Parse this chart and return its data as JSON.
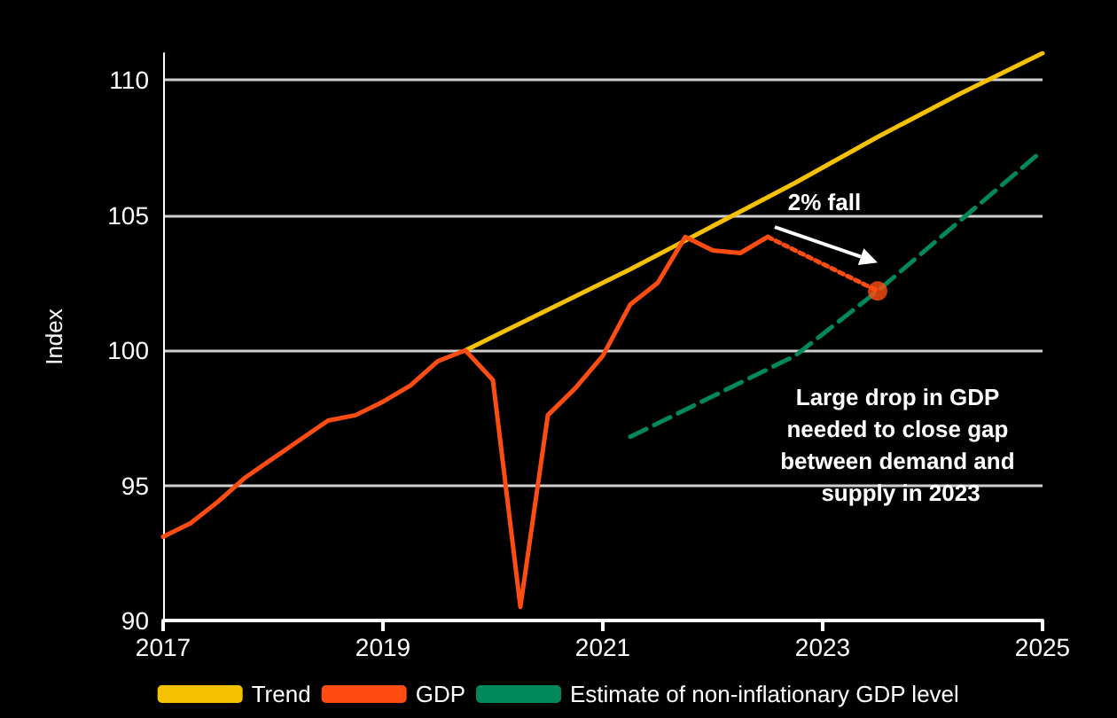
{
  "chart_data": {
    "type": "line",
    "ylabel": "Index",
    "xlim": [
      2017,
      2025
    ],
    "xticks": [
      2017,
      2019,
      2021,
      2023,
      2025
    ],
    "ylim": [
      90,
      111
    ],
    "yticks": [
      90,
      95,
      100,
      105,
      110
    ],
    "grid": "y",
    "legend": "bottom",
    "marker": "none",
    "annotations": [
      "2% fall",
      "Large drop in GDP needed to close gap between demand and supply in 2023"
    ],
    "series": [
      {
        "name": "Trend",
        "color": "#f5c000",
        "x": [
          2019.75,
          2020.5,
          2021.25,
          2022.0,
          2022.75,
          2023.5,
          2024.25,
          2025
        ],
        "values": [
          100.0,
          101.5,
          103.0,
          104.6,
          106.2,
          107.9,
          109.5,
          111.0
        ]
      },
      {
        "name": "GDP",
        "color": "#ff4d12",
        "x": [
          2017,
          2017.25,
          2017.5,
          2017.75,
          2018,
          2018.25,
          2018.5,
          2018.75,
          2019,
          2019.25,
          2019.5,
          2019.75,
          2020,
          2020.25,
          2020.5,
          2020.75,
          2021,
          2021.25,
          2021.5,
          2021.75,
          2022,
          2022.25,
          2022.5
        ],
        "values": [
          93.1,
          93.6,
          94.4,
          95.3,
          96.0,
          96.7,
          97.4,
          97.6,
          98.1,
          98.7,
          99.6,
          100.0,
          98.9,
          90.5,
          97.6,
          98.6,
          99.8,
          101.7,
          102.5,
          104.2,
          103.7,
          103.6,
          104.2
        ]
      },
      {
        "name": "Estimate of non-inflationary GDP level",
        "color": "#00875a",
        "line_style": "dashed",
        "x": [
          2021.25,
          2022.75,
          2023.0,
          2023.5,
          2024.25,
          2025
        ],
        "values": [
          96.8,
          99.8,
          100.6,
          102.2,
          104.8,
          107.4
        ]
      },
      {
        "color": "#ff4d12",
        "line_style": "dotted",
        "x": [
          2022.5,
          2023.5
        ],
        "values": [
          104.2,
          102.2
        ]
      },
      {
        "type": "scatter",
        "color": "#ff4d12",
        "marker": "circle",
        "x": [
          2023.5
        ],
        "values": [
          102.2
        ]
      }
    ]
  }
}
